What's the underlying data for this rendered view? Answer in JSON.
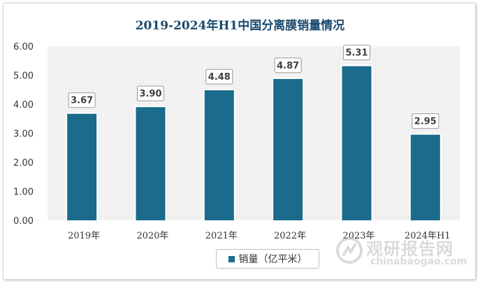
{
  "chart_data": {
    "type": "bar",
    "title": "2019-2024年H1中国分离膜销量情况",
    "categories": [
      "2019年",
      "2020年",
      "2021年",
      "2022年",
      "2023年",
      "2024年H1"
    ],
    "series": [
      {
        "name": "销量（亿平米）",
        "values": [
          3.67,
          3.9,
          4.48,
          4.87,
          5.31,
          2.95
        ]
      }
    ],
    "data_labels": [
      "3.67",
      "3.90",
      "4.48",
      "4.87",
      "5.31",
      "2.95"
    ],
    "yticks": [
      "0.00",
      "1.00",
      "2.00",
      "3.00",
      "4.00",
      "5.00",
      "6.00"
    ],
    "ylim": [
      0,
      6
    ],
    "grid": false,
    "legend_position": "bottom",
    "colors": {
      "bar": "#1a6b8c",
      "plot_background": "#f2f2f2",
      "title": "#1a4a6e"
    }
  },
  "watermark": {
    "name_cn": "观研报告网",
    "site": "chinabaogao.com"
  }
}
